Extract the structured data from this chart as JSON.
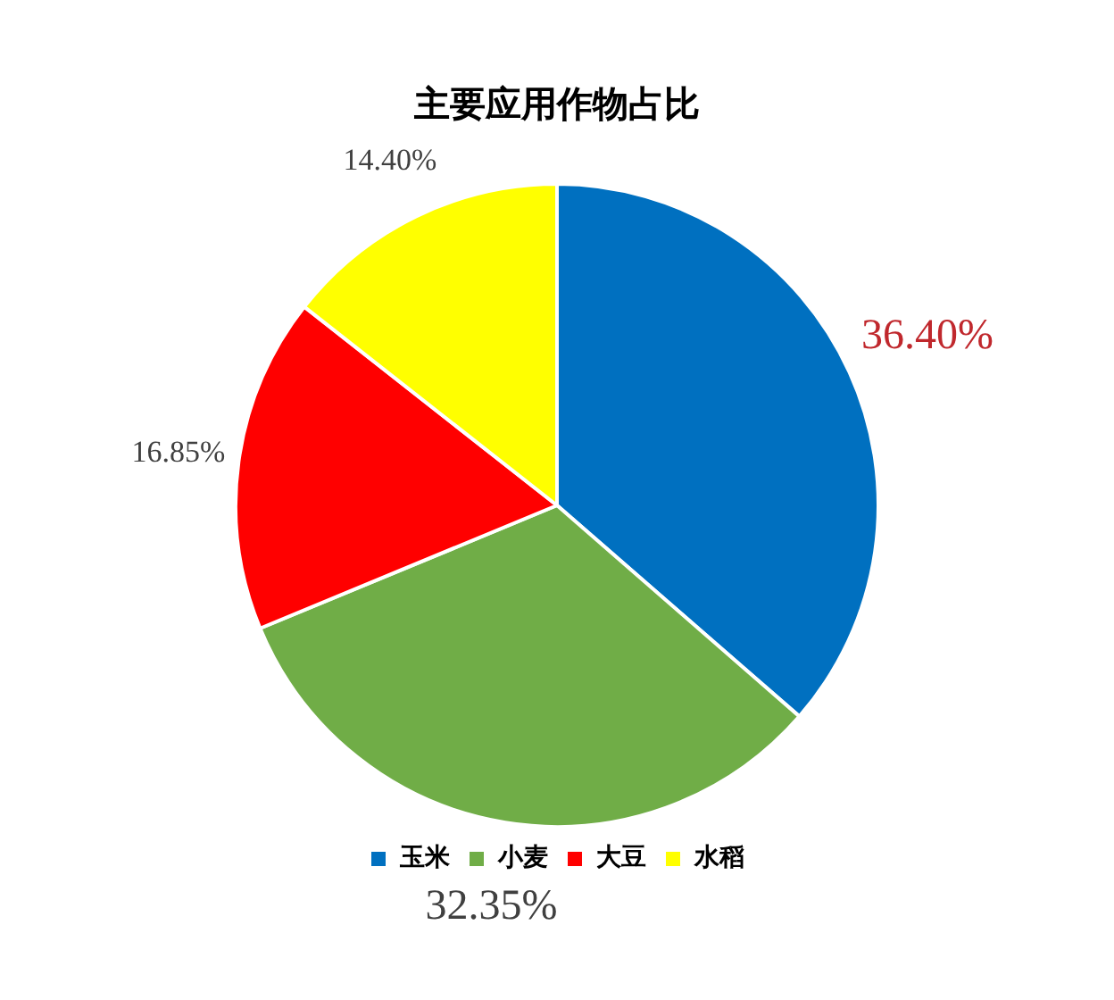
{
  "chart_data": {
    "type": "pie",
    "title": "主要应用作物占比",
    "categories": [
      "玉米",
      "小麦",
      "大豆",
      "水稻"
    ],
    "values": [
      36.4,
      32.35,
      16.85,
      14.4
    ],
    "colors": [
      "#0070c0",
      "#70ad47",
      "#ff0000",
      "#ffff00"
    ],
    "value_labels": [
      "36.40%",
      "32.35%",
      "16.85%",
      "14.40%"
    ],
    "legend": "bottom"
  }
}
